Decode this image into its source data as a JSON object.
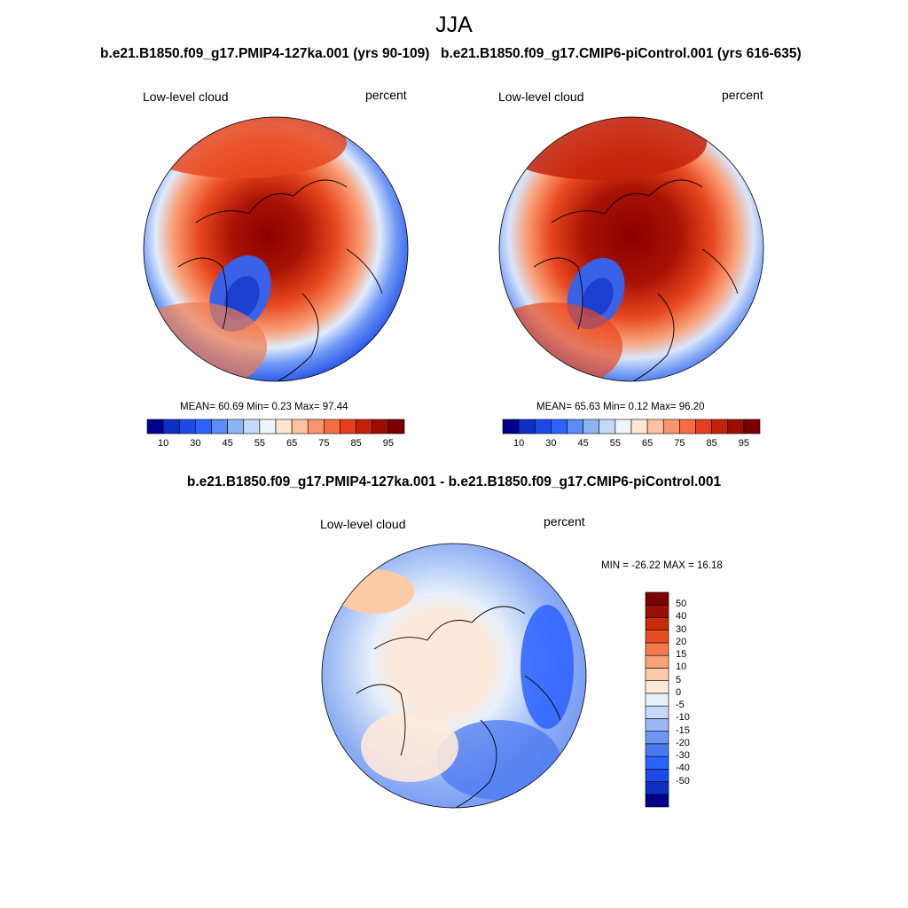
{
  "title": "JJA",
  "panels": [
    {
      "title": "b.e21.B1850.f09_g17.PMIP4-127ka.001 (yrs 90-109)",
      "variable": "Low-level cloud",
      "units": "percent",
      "stats": "MEAN=  60.69  Min=   0.23  Max=  97.44",
      "mean": 60.69,
      "min": 0.23,
      "max": 97.44
    },
    {
      "title": "b.e21.B1850.f09_g17.CMIP6-piControl.001 (yrs 616-635)",
      "variable": "Low-level cloud",
      "units": "percent",
      "stats": "MEAN=  65.63  Min=   0.12  Max=  96.20",
      "mean": 65.63,
      "min": 0.12,
      "max": 96.2
    }
  ],
  "diff": {
    "title": "b.e21.B1850.f09_g17.PMIP4-127ka.001 - b.e21.B1850.f09_g17.CMIP6-piControl.001",
    "variable": "Low-level cloud",
    "units": "percent",
    "minmax": "MIN = -26.22 MAX =  16.18",
    "min": -26.22,
    "max": 16.18
  },
  "colorbar_abs": {
    "colors": [
      "#00008b",
      "#0c2fc4",
      "#1d4ae6",
      "#2c62ff",
      "#5a8cf5",
      "#8cb4f5",
      "#c3dbf8",
      "#eef5fd",
      "#fde6d4",
      "#fbc2a1",
      "#f9956c",
      "#f66c42",
      "#e63f1e",
      "#c32209",
      "#9a0e02",
      "#7a0000"
    ],
    "tick_labels": [
      "10",
      "30",
      "45",
      "55",
      "65",
      "75",
      "85",
      "95"
    ]
  },
  "colorbar_diff": {
    "colors": [
      "#00008b",
      "#0c2fc4",
      "#1d4ae6",
      "#2c62ff",
      "#4a78f0",
      "#6f95f5",
      "#9ab8f7",
      "#c5d8f8",
      "#e8f0fb",
      "#fde9da",
      "#fbcba8",
      "#f9a37a",
      "#f57a4e",
      "#e84e24",
      "#c82a0a",
      "#9a0e02",
      "#7a0000"
    ],
    "tick_labels": [
      "50",
      "40",
      "30",
      "20",
      "15",
      "10",
      "5",
      "0",
      "-5",
      "-10",
      "-15",
      "-20",
      "-30",
      "-40",
      "-50"
    ]
  }
}
